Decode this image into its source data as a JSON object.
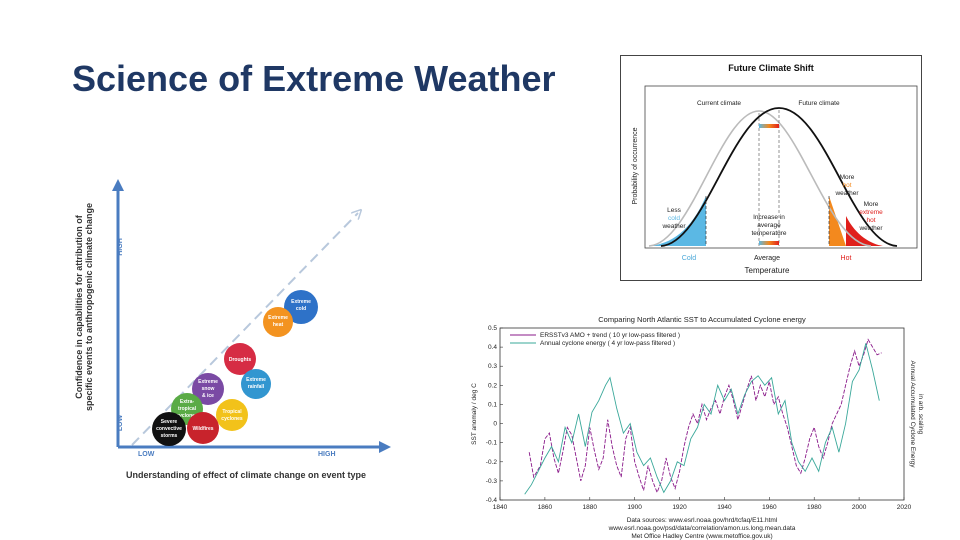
{
  "slide": {
    "title": "Science of Extreme Weather"
  },
  "attribution": {
    "y_axis_label_line1": "Confidence in capabilities for attribution of",
    "y_axis_label_line2": "specific events to anthropogenic climate change",
    "y_high": "HIGH",
    "y_low": "LOW",
    "x_low": "LOW",
    "x_high": "HIGH",
    "x_axis_label": "Understanding of effect of climate change on event type",
    "bubbles": [
      {
        "line1": "Extreme",
        "line2": "cold",
        "line3": "",
        "color": "#2e72c8"
      },
      {
        "line1": "Extreme",
        "line2": "heat",
        "line3": "",
        "color": "#f39320"
      },
      {
        "line1": "Droughts",
        "line2": "",
        "line3": "",
        "color": "#d62c44"
      },
      {
        "line1": "Extreme",
        "line2": "rainfall",
        "line3": "",
        "color": "#3296d0"
      },
      {
        "line1": "Extreme",
        "line2": "snow",
        "line3": "& ice",
        "color": "#7a4aa4"
      },
      {
        "line1": "Extra-",
        "line2": "tropical",
        "line3": "cyclones",
        "color": "#5aab46"
      },
      {
        "line1": "Tropical",
        "line2": "cyclones",
        "line3": "",
        "color": "#f2c21a"
      },
      {
        "line1": "Wildfires",
        "line2": "",
        "line3": "",
        "color": "#c8232c"
      },
      {
        "line1": "Severe",
        "line2": "convective",
        "line3": "storms",
        "color": "#111111"
      }
    ]
  },
  "future_climate": {
    "title": "Future Climate Shift",
    "y_label": "Probability of occurrence",
    "current_climate": "Current climate",
    "future_climate": "Future climate",
    "more_hot_line1": "More",
    "more_hot_line2": "hot",
    "more_hot_line3": "weather",
    "more_extreme_line1": "More",
    "more_extreme_line2": "extreme",
    "more_extreme_line3": "hot",
    "more_extreme_line4": "weather",
    "less_line1": "Less",
    "less_line2": "cold",
    "less_line3": "weather",
    "increase_line1": "Increase in",
    "increase_line2": "average",
    "increase_line3": "temperature",
    "cold": "Cold",
    "average": "Average",
    "hot": "Hot",
    "x_label": "Temperature"
  },
  "amo_chart": {
    "title": "Comparing North Atlantic SST to Accumulated Cyclone energy",
    "legend_1": "ERSSTv3 AMO + trend ( 10 yr low-pass filtered )",
    "legend_2": "Annual cyclone energy ( 4 yr low-pass filtered )",
    "y_left_label": "SST anomaly / deg C",
    "y_right_label_1": "Annual Accumulated Cyclone Energy",
    "y_right_label_2": "in arb. scaling",
    "source_1": "Data sources: www.esrl.noaa.gov/hrd/tcfaq/E11.html",
    "source_2": "www.esrl.noaa.gov/psd/data/correlation/amon.us.long.mean.data",
    "source_3": "Met Office Hadley Centre (www.metoffice.gov.uk)"
  },
  "chart_data": {
    "type": "line",
    "title": "Comparing North Atlantic SST to Accumulated Cyclone energy",
    "xlabel": "",
    "ylabel": "SST anomaly / deg C",
    "xlim": [
      1840,
      2020
    ],
    "ylim": [
      -0.4,
      0.5
    ],
    "x_ticks": [
      1840,
      1860,
      1880,
      1900,
      1920,
      1940,
      1960,
      1980,
      2000,
      2020
    ],
    "y_ticks": [
      -0.4,
      -0.3,
      -0.2,
      -0.1,
      0,
      0.1,
      0.2,
      0.3,
      0.4,
      0.5
    ],
    "series": [
      {
        "name": "ERSSTv3 AMO + trend ( 10 yr low-pass filtered )",
        "color": "#8a1a8a",
        "x": [
          1853,
          1855,
          1858,
          1860,
          1862,
          1864,
          1866,
          1868,
          1870,
          1872,
          1874,
          1876,
          1878,
          1880,
          1882,
          1884,
          1886,
          1888,
          1890,
          1892,
          1894,
          1896,
          1898,
          1900,
          1902,
          1904,
          1906,
          1908,
          1910,
          1912,
          1914,
          1916,
          1918,
          1920,
          1922,
          1924,
          1926,
          1928,
          1930,
          1932,
          1934,
          1936,
          1938,
          1940,
          1942,
          1944,
          1946,
          1948,
          1950,
          1952,
          1954,
          1956,
          1958,
          1960,
          1962,
          1964,
          1966,
          1968,
          1970,
          1972,
          1974,
          1976,
          1978,
          1980,
          1982,
          1984,
          1986,
          1988,
          1990,
          1992,
          1994,
          1996,
          1998,
          2000,
          2002,
          2004,
          2006,
          2008,
          2010
        ],
        "values": [
          -0.15,
          -0.28,
          -0.22,
          -0.08,
          -0.05,
          -0.18,
          -0.26,
          -0.15,
          -0.02,
          -0.06,
          -0.18,
          -0.3,
          -0.22,
          -0.02,
          -0.14,
          -0.24,
          -0.18,
          0.02,
          -0.12,
          -0.22,
          -0.28,
          -0.08,
          -0.02,
          -0.2,
          -0.28,
          -0.35,
          -0.22,
          -0.3,
          -0.36,
          -0.3,
          -0.18,
          -0.28,
          -0.34,
          -0.25,
          -0.12,
          -0.02,
          0.05,
          0.0,
          0.1,
          0.02,
          0.08,
          0.12,
          0.05,
          0.14,
          0.2,
          0.12,
          0.02,
          0.1,
          0.18,
          0.25,
          0.12,
          0.2,
          0.14,
          0.22,
          0.1,
          0.14,
          0.05,
          -0.02,
          -0.12,
          -0.22,
          -0.26,
          -0.18,
          -0.08,
          -0.02,
          -0.12,
          -0.18,
          -0.1,
          0.0,
          0.05,
          0.1,
          0.2,
          0.3,
          0.38,
          0.3,
          0.36,
          0.44,
          0.4,
          0.36,
          0.37
        ]
      },
      {
        "name": "Annual cyclone energy ( 4 yr low-pass filtered )",
        "color": "#3aa89a",
        "x": [
          1851,
          1854,
          1857,
          1860,
          1863,
          1866,
          1869,
          1872,
          1875,
          1878,
          1881,
          1884,
          1887,
          1889,
          1892,
          1895,
          1898,
          1901,
          1904,
          1907,
          1910,
          1913,
          1916,
          1919,
          1922,
          1925,
          1928,
          1931,
          1934,
          1937,
          1940,
          1943,
          1946,
          1949,
          1952,
          1955,
          1958,
          1961,
          1964,
          1967,
          1970,
          1973,
          1976,
          1979,
          1982,
          1985,
          1988,
          1991,
          1994,
          1997,
          2000,
          2003,
          2006,
          2009
        ],
        "values": [
          -0.37,
          -0.32,
          -0.25,
          -0.18,
          -0.12,
          -0.2,
          -0.02,
          -0.1,
          0.05,
          -0.12,
          0.06,
          0.12,
          0.2,
          0.24,
          0.08,
          -0.05,
          0.0,
          -0.15,
          -0.22,
          -0.18,
          -0.28,
          -0.36,
          -0.3,
          -0.2,
          -0.22,
          -0.08,
          -0.02,
          0.1,
          0.05,
          0.2,
          0.12,
          0.18,
          0.05,
          0.15,
          0.22,
          0.25,
          0.2,
          0.24,
          0.05,
          0.12,
          -0.1,
          -0.2,
          -0.25,
          -0.18,
          -0.25,
          -0.1,
          -0.02,
          -0.15,
          0.0,
          0.22,
          0.28,
          0.42,
          0.28,
          0.12
        ]
      }
    ]
  }
}
